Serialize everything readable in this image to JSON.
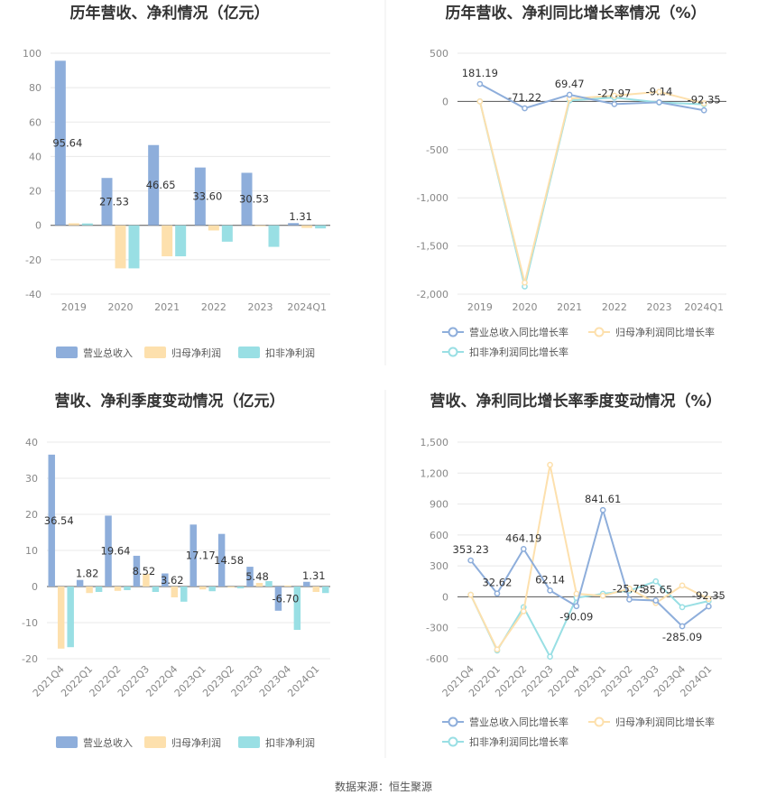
{
  "source_note": "数据来源：恒生聚源",
  "chart_data": [
    {
      "type": "bar",
      "title": "历年营收、净利情况（亿元）",
      "categories": [
        "2019",
        "2020",
        "2021",
        "2022",
        "2023",
        "2024Q1"
      ],
      "ylim": [
        -40,
        100
      ],
      "yticks": [
        100,
        80,
        60,
        40,
        20,
        0,
        -20,
        -40
      ],
      "grid": true,
      "legend_position": "bottom",
      "series": [
        {
          "name": "营业总收入",
          "color": "#8eaedb",
          "values": [
            95.64,
            27.53,
            46.65,
            33.6,
            30.53,
            1.31
          ],
          "labels": [
            "95.64",
            "27.53",
            "46.65",
            "33.60",
            "30.53",
            "1.31"
          ]
        },
        {
          "name": "归母净利润",
          "color": "#fde0ad",
          "values": [
            1.2,
            -25,
            -18,
            -3,
            -0.5,
            -1.5
          ]
        },
        {
          "name": "扣非净利润",
          "color": "#99dfe4",
          "values": [
            1.1,
            -25,
            -18,
            -9.5,
            -12.5,
            -1.8
          ]
        }
      ]
    },
    {
      "type": "line",
      "title": "历年营收、净利同比增长率情况（%）",
      "categories": [
        "2019",
        "2020",
        "2021",
        "2022",
        "2023",
        "2024Q1"
      ],
      "ylim": [
        -2000,
        500
      ],
      "yticks": [
        500,
        0,
        -500,
        -1000,
        -1500,
        -2000
      ],
      "ytick_labels": [
        "500",
        "0",
        "-500",
        "-1,000",
        "-1,500",
        "-2,000"
      ],
      "grid": true,
      "legend_position": "bottom",
      "series": [
        {
          "name": "营业总收入同比增长率",
          "color": "#8eaedb",
          "values": [
            181.19,
            -71.22,
            69.47,
            -27.97,
            -9.14,
            -92.35
          ],
          "labels": [
            "181.19",
            "-71.22",
            "69.47",
            "-27.97",
            "-9.14",
            "-92.35"
          ]
        },
        {
          "name": "归母净利润同比增长率",
          "color": "#fde0ad",
          "values": [
            0,
            -1880,
            30,
            60,
            100,
            -20
          ]
        },
        {
          "name": "扣非净利润同比增长率",
          "color": "#99dfe4",
          "values": [
            0,
            -1920,
            10,
            40,
            -10,
            -30
          ]
        }
      ]
    },
    {
      "type": "bar",
      "title": "营收、净利季度变动情况（亿元）",
      "categories": [
        "2021Q4",
        "2022Q1",
        "2022Q2",
        "2022Q3",
        "2022Q4",
        "2023Q1",
        "2023Q2",
        "2023Q3",
        "2023Q4",
        "2024Q1"
      ],
      "ylim": [
        -20,
        40
      ],
      "yticks": [
        40,
        30,
        20,
        10,
        0,
        -10,
        -20
      ],
      "grid": true,
      "legend_position": "bottom",
      "series": [
        {
          "name": "营业总收入",
          "color": "#8eaedb",
          "values": [
            36.54,
            1.82,
            19.64,
            8.52,
            3.62,
            17.17,
            14.58,
            5.48,
            -6.7,
            1.31
          ],
          "labels": [
            "36.54",
            "1.82",
            "19.64",
            "8.52",
            "3.62",
            "17.17",
            "14.58",
            "5.48",
            "-6.70",
            "1.31"
          ]
        },
        {
          "name": "归母净利润",
          "color": "#fde0ad",
          "values": [
            -17.2,
            -1.8,
            -1.2,
            3.5,
            -3.0,
            -0.8,
            -0.3,
            1.0,
            0.3,
            -1.5
          ]
        },
        {
          "name": "扣非净利润",
          "color": "#99dfe4",
          "values": [
            -16.8,
            -1.5,
            -1.0,
            -1.5,
            -4.2,
            -1.3,
            -0.5,
            1.5,
            -12.0,
            -1.8
          ]
        }
      ]
    },
    {
      "type": "line",
      "title": "营收、净利同比增长率季度变动情况（%）",
      "categories": [
        "2021Q4",
        "2022Q1",
        "2022Q2",
        "2022Q3",
        "2022Q4",
        "2023Q1",
        "2023Q2",
        "2023Q3",
        "2023Q4",
        "2024Q1"
      ],
      "ylim": [
        -600,
        1500
      ],
      "yticks": [
        1500,
        1200,
        900,
        600,
        300,
        0,
        -300,
        -600
      ],
      "ytick_labels": [
        "1,500",
        "1,200",
        "900",
        "600",
        "300",
        "0",
        "-300",
        "-600"
      ],
      "grid": true,
      "legend_position": "bottom",
      "series": [
        {
          "name": "营业总收入同比增长率",
          "color": "#8eaedb",
          "values": [
            353.23,
            32.62,
            464.19,
            62.14,
            -90.09,
            841.61,
            -25.75,
            -35.65,
            -285.09,
            -92.35
          ],
          "labels": [
            "353.23",
            "32.62",
            "464.19",
            "62.14",
            "-90.09",
            "841.61",
            "-25.75",
            "-35.65",
            "-285.09",
            "-92.35"
          ]
        },
        {
          "name": "归母净利润同比增长率",
          "color": "#fde0ad",
          "values": [
            20,
            -510,
            -140,
            1280,
            30,
            10,
            80,
            -60,
            110,
            -20
          ]
        },
        {
          "name": "扣非净利润同比增长率",
          "color": "#99dfe4",
          "values": [
            20,
            -520,
            -100,
            -580,
            -10,
            30,
            60,
            150,
            -100,
            -40
          ]
        }
      ]
    }
  ]
}
